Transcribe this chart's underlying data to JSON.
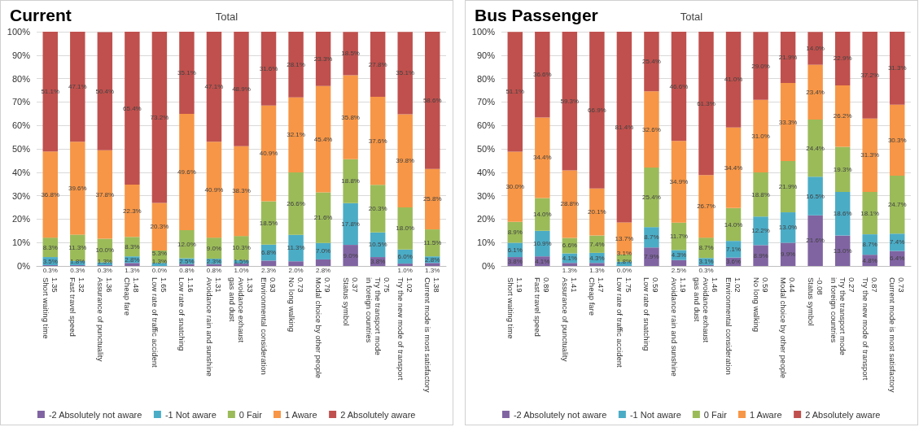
{
  "chart_data": [
    {
      "type": "bar",
      "title": "Current",
      "subtitle": "Total",
      "stacked": true,
      "grid": "y",
      "legend": "bottom",
      "categories": [
        "1.35\nShort waiting time",
        "1.32\nFast travel speed",
        "1.36\nAssurance of punctuality",
        "1.48\nCheap fare",
        "1.65\nLow rate of traffic accident",
        "1.16\nLow rate of snatching",
        "1.31\nAvoidance rain and sunshine",
        "1.33\nAvoidance exhaust\ngas and dust",
        "0.93\nEnvironmental consideration",
        "0.73\nNo long walking",
        "0.79\nModal choice by other people",
        "0.37\nStatus symbol",
        "0.75\nTry the transport mode\nin foreign countries",
        "1.02\nTry the new mode of transport",
        "1.38\nCurrent mode is most satisfactory"
      ],
      "ylim": [
        0,
        100
      ],
      "yticks": [
        {
          "value": 0,
          "label": "0%"
        },
        {
          "value": 10,
          "label": "10%"
        },
        {
          "value": 20,
          "label": "20%"
        },
        {
          "value": 30,
          "label": "30%"
        },
        {
          "value": 40,
          "label": "40%"
        },
        {
          "value": 50,
          "label": "50%"
        },
        {
          "value": 60,
          "label": "60%"
        },
        {
          "value": 70,
          "label": "70%"
        },
        {
          "value": 80,
          "label": "80%"
        },
        {
          "value": 90,
          "label": "90%"
        },
        {
          "value": 100,
          "label": "100%"
        }
      ],
      "series": [
        {
          "name": "-2 Absolutely not aware",
          "color": "#8064a2",
          "values": [
            0.3,
            0.3,
            0.3,
            1.3,
            0.0,
            0.8,
            0.8,
            1.0,
            2.3,
            2.0,
            2.8,
            9.0,
            3.8,
            1.0,
            1.3
          ],
          "value_labels": [
            "0.3%",
            "0.3%",
            "0.3%",
            "1.3%",
            "0.0%",
            "0.8%",
            "0.8%",
            "1.0%",
            "2.3%",
            "2.0%",
            "2.8%",
            "9.0%",
            "3.8%",
            "1.0%",
            "1.3%"
          ]
        },
        {
          "name": "-1 Not aware",
          "color": "#4bacc6",
          "values": [
            3.5,
            1.8,
            1.3,
            2.8,
            1.3,
            2.5,
            2.3,
            1.5,
            6.8,
            11.3,
            7.0,
            17.8,
            10.5,
            6.0,
            2.8
          ],
          "value_labels": [
            "3.5%",
            "1.8%",
            "1.3%",
            "2.8%",
            "1.3%",
            "2.5%",
            "2.3%",
            "1.5%",
            "6.8%",
            "11.3%",
            "7.0%",
            "17.8%",
            "10.5%",
            "6.0%",
            "2.8%"
          ]
        },
        {
          "name": "0 Fair",
          "color": "#9bbb59",
          "values": [
            8.3,
            11.3,
            10.0,
            8.3,
            5.3,
            12.0,
            9.0,
            10.3,
            18.5,
            26.6,
            21.6,
            18.8,
            20.3,
            18.0,
            11.5
          ],
          "value_labels": [
            "8.3%",
            "11.3%",
            "10.0%",
            "8.3%",
            "5.3%",
            "12.0%",
            "9.0%",
            "10.3%",
            "18.5%",
            "26.6%",
            "21.6%",
            "18.8%",
            "20.3%",
            "18.0%",
            "11.5%"
          ]
        },
        {
          "name": "1 Aware",
          "color": "#f79646",
          "values": [
            36.8,
            39.6,
            37.8,
            22.3,
            20.3,
            49.6,
            40.9,
            38.3,
            40.9,
            32.1,
            45.4,
            35.8,
            37.6,
            39.8,
            25.8
          ],
          "value_labels": [
            "36.8%",
            "39.6%",
            "37.8%",
            "22.3%",
            "20.3%",
            "49.6%",
            "40.9%",
            "38.3%",
            "40.9%",
            "32.1%",
            "45.4%",
            "35.8%",
            "37.6%",
            "39.8%",
            "25.8%"
          ]
        },
        {
          "name": "2 Absolutely aware",
          "color": "#c0504d",
          "values": [
            51.1,
            47.1,
            50.4,
            65.4,
            73.2,
            35.1,
            47.1,
            48.9,
            31.6,
            28.1,
            23.3,
            18.5,
            27.8,
            35.1,
            58.6
          ],
          "value_labels": [
            "51.1%",
            "47.1%",
            "50.4%",
            "65.4%",
            "73.2%",
            "35.1%",
            "47.1%",
            "48.9%",
            "31.6%",
            "28.1%",
            "23.3%",
            "18.5%",
            "27.8%",
            "35.1%",
            "58.6%"
          ]
        }
      ]
    },
    {
      "type": "bar",
      "title": "Bus Passenger",
      "subtitle": "Total",
      "stacked": true,
      "grid": "y",
      "legend": "bottom",
      "categories": [
        "1.19\nShort waiting time",
        "0.89\nFast travel speed",
        "1.41\nAssurance of punctuality",
        "1.47\nCheap fare",
        "1.75\nLow rate of traffic accident",
        "0.59\nLow rate of snatching",
        "1.19\nAvoidance rain and sunshine",
        "1.46\nAvoidance exhaust\ngas and dust",
        "1.02\nEnvironmental consideration",
        "0.59\nNo long walking",
        "0.44\nModal choice by other people",
        "-0.08\nStatus symbol",
        "0.27\nTry the transport mode\nin foreign countries",
        "0.87\nTry the new mode of transport",
        "0.73\nCurrent mode is most satisfactory"
      ],
      "ylim": [
        0,
        100
      ],
      "yticks": [
        {
          "value": 0,
          "label": "0%"
        },
        {
          "value": 10,
          "label": "10%"
        },
        {
          "value": 20,
          "label": "20%"
        },
        {
          "value": 30,
          "label": "30%"
        },
        {
          "value": 40,
          "label": "40%"
        },
        {
          "value": 50,
          "label": "50%"
        },
        {
          "value": 60,
          "label": "60%"
        },
        {
          "value": 70,
          "label": "70%"
        },
        {
          "value": 80,
          "label": "80%"
        },
        {
          "value": 90,
          "label": "90%"
        },
        {
          "value": 100,
          "label": "100%"
        }
      ],
      "series": [
        {
          "name": "-2 Absolutely not aware",
          "color": "#8064a2",
          "values": [
            3.8,
            4.1,
            1.3,
            1.3,
            0.0,
            7.9,
            2.5,
            0.3,
            3.6,
            8.9,
            9.9,
            21.6,
            13.0,
            4.8,
            6.4
          ],
          "value_labels": [
            "3.8%",
            "4.1%",
            "1.3%",
            "1.3%",
            "0.0%",
            "7.9%",
            "2.5%",
            "0.3%",
            "3.6%",
            "8.9%",
            "9.9%",
            "21.6%",
            "13.0%",
            "4.8%",
            "6.4%"
          ]
        },
        {
          "name": "-1 Not aware",
          "color": "#4bacc6",
          "values": [
            6.1,
            10.9,
            4.1,
            4.3,
            1.8,
            8.7,
            4.3,
            3.1,
            7.1,
            12.2,
            13.0,
            16.5,
            18.6,
            8.7,
            7.4
          ],
          "value_labels": [
            "6.1%",
            "10.9%",
            "4.1%",
            "4.3%",
            "1.8%",
            "8.7%",
            "4.3%",
            "3.1%",
            "7.1%",
            "12.2%",
            "13.0%",
            "16.5%",
            "18.6%",
            "8.7%",
            "7.4%"
          ]
        },
        {
          "name": "0 Fair",
          "color": "#9bbb59",
          "values": [
            8.9,
            14.0,
            6.6,
            7.4,
            3.1,
            25.4,
            11.7,
            8.7,
            14.0,
            18.8,
            21.9,
            24.4,
            19.3,
            18.1,
            24.7
          ],
          "value_labels": [
            "8.9%",
            "14.0%",
            "6.6%",
            "7.4%",
            "3.1%",
            "25.4%",
            "11.7%",
            "8.7%",
            "14.0%",
            "18.8%",
            "21.9%",
            "24.4%",
            "19.3%",
            "18.1%",
            "24.7%"
          ]
        },
        {
          "name": "1 Aware",
          "color": "#f79646",
          "values": [
            30.0,
            34.4,
            28.8,
            20.1,
            13.7,
            32.6,
            34.9,
            26.7,
            34.4,
            31.0,
            33.3,
            23.4,
            26.2,
            31.3,
            30.3
          ],
          "value_labels": [
            "30.0%",
            "34.4%",
            "28.8%",
            "20.1%",
            "13.7%",
            "32.6%",
            "34.9%",
            "26.7%",
            "34.4%",
            "31.0%",
            "33.3%",
            "23.4%",
            "26.2%",
            "31.3%",
            "30.3%"
          ]
        },
        {
          "name": "2 Absolutely aware",
          "color": "#c0504d",
          "values": [
            51.1,
            36.6,
            59.3,
            66.9,
            81.4,
            25.4,
            46.6,
            61.3,
            41.0,
            29.0,
            21.9,
            14.0,
            22.9,
            37.2,
            31.3
          ],
          "value_labels": [
            "51.1%",
            "36.6%",
            "59.3%",
            "66.9%",
            "81.4%",
            "25.4%",
            "46.6%",
            "61.3%",
            "41.0%",
            "29.0%",
            "21.9%",
            "14.0%",
            "22.9%",
            "37.2%",
            "31.3%"
          ]
        }
      ]
    }
  ]
}
